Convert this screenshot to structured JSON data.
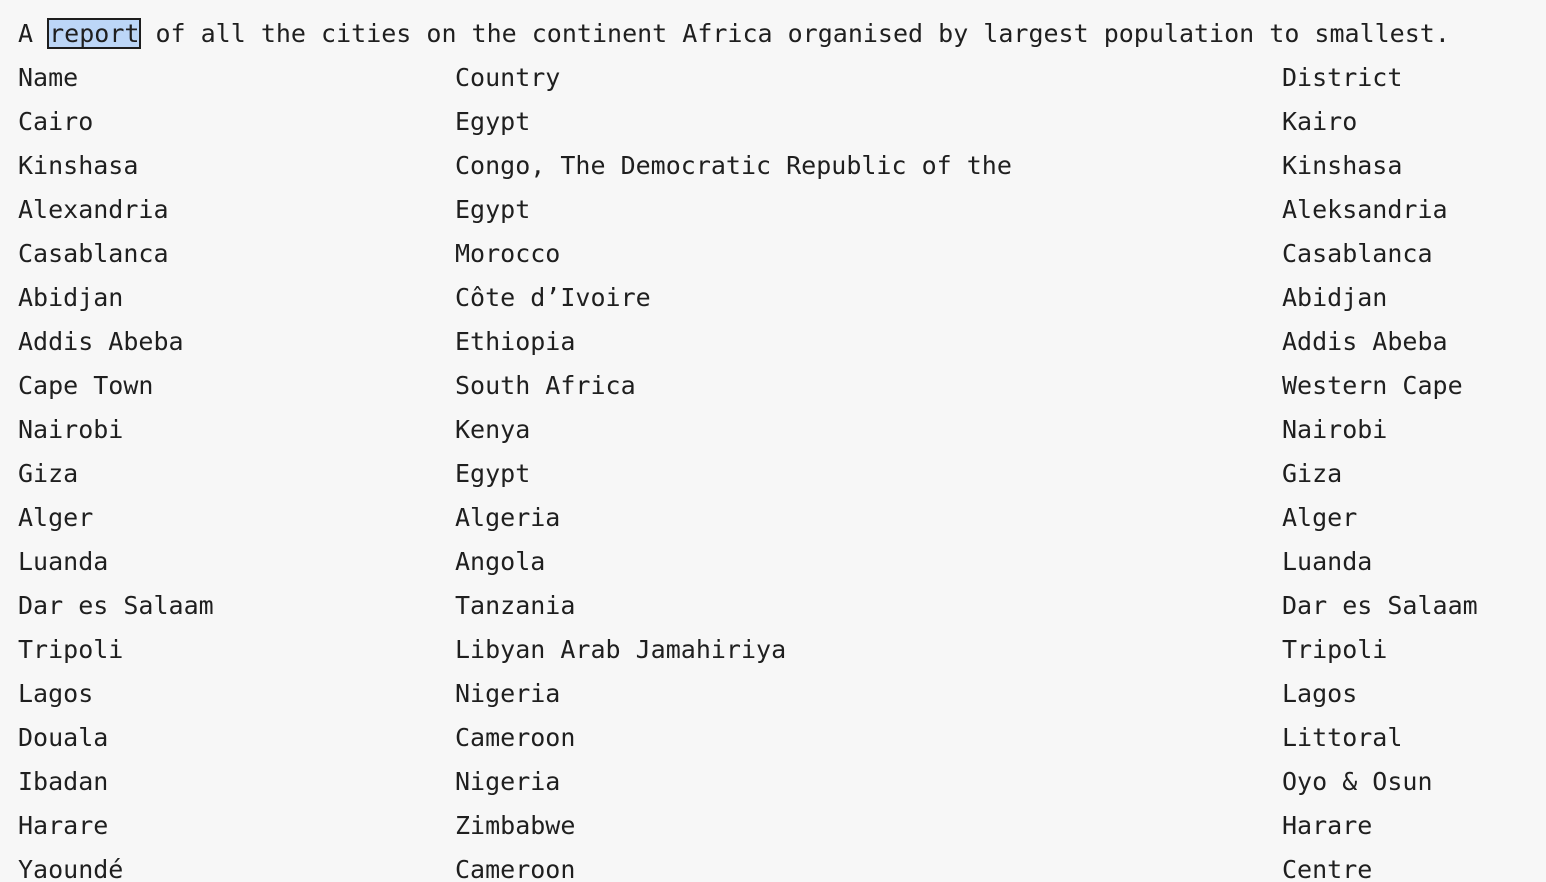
{
  "intro": {
    "before": "A ",
    "highlight": "report",
    "after": " of all the cities on the continent Africa organised by largest population to smallest."
  },
  "table": {
    "headers": {
      "name": "Name",
      "country": "Country",
      "district": "District"
    },
    "rows": [
      {
        "name": "Cairo",
        "country": "Egypt",
        "district": "Kairo"
      },
      {
        "name": "Kinshasa",
        "country": "Congo, The Democratic Republic of the",
        "district": "Kinshasa"
      },
      {
        "name": "Alexandria",
        "country": "Egypt",
        "district": "Aleksandria"
      },
      {
        "name": "Casablanca",
        "country": "Morocco",
        "district": "Casablanca"
      },
      {
        "name": "Abidjan",
        "country": "Côte d’Ivoire",
        "district": "Abidjan"
      },
      {
        "name": "Addis Abeba",
        "country": "Ethiopia",
        "district": "Addis Abeba"
      },
      {
        "name": "Cape Town",
        "country": "South Africa",
        "district": "Western Cape"
      },
      {
        "name": "Nairobi",
        "country": "Kenya",
        "district": "Nairobi"
      },
      {
        "name": "Giza",
        "country": "Egypt",
        "district": "Giza"
      },
      {
        "name": "Alger",
        "country": "Algeria",
        "district": "Alger"
      },
      {
        "name": "Luanda",
        "country": "Angola",
        "district": "Luanda"
      },
      {
        "name": "Dar es Salaam",
        "country": "Tanzania",
        "district": "Dar es Salaam"
      },
      {
        "name": "Tripoli",
        "country": "Libyan Arab Jamahiriya",
        "district": "Tripoli"
      },
      {
        "name": "Lagos",
        "country": "Nigeria",
        "district": "Lagos"
      },
      {
        "name": "Douala",
        "country": "Cameroon",
        "district": "Littoral"
      },
      {
        "name": "Ibadan",
        "country": "Nigeria",
        "district": "Oyo & Osun"
      },
      {
        "name": "Harare",
        "country": "Zimbabwe",
        "district": "Harare"
      },
      {
        "name": "Yaoundé",
        "country": "Cameroon",
        "district": "Centre"
      }
    ]
  }
}
